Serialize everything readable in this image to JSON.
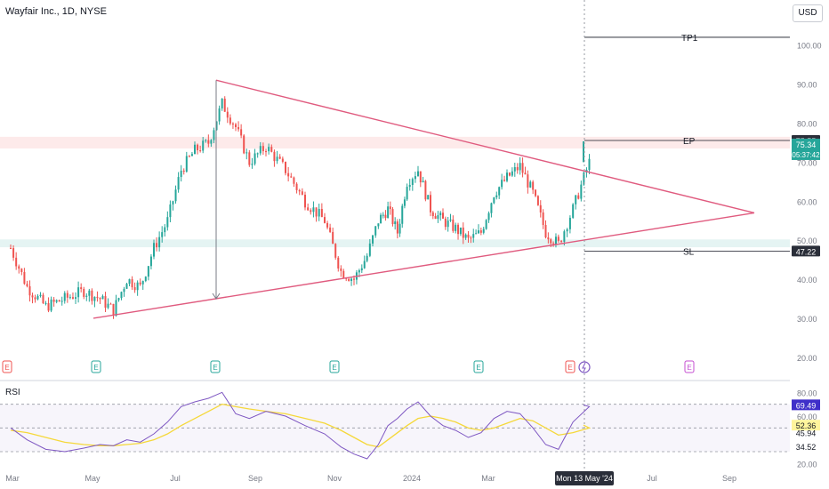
{
  "header": {
    "title": "Wayfair Inc., 1D, NYSE",
    "currency": "USD",
    "rsi_label": "RSI"
  },
  "colors": {
    "up": "#26a69a",
    "down": "#ef5350",
    "trendline": "#e05b7f",
    "rsi_line": "#7e57c2",
    "rsi_ma": "#f5d83a",
    "ep_tag": "#26a69a",
    "dark_tag": "#2a2e39",
    "rsi_tag": "#3f2fc9",
    "ma_tag": "#fff59d"
  },
  "annotations": {
    "tp1": "TP1",
    "ep": "EP",
    "sl": "SL",
    "ep_price": "75.55",
    "last_price": "75.34",
    "countdown": "05:37:42",
    "sl_price": "47.22",
    "crosshair_date": "Mon 13 May '24"
  },
  "chart_data": [
    {
      "type": "candlestick",
      "y_axis_ticks": [
        "100.00",
        "90.00",
        "80.00",
        "70.00",
        "60.00",
        "50.00",
        "40.00",
        "30.00",
        "20.00"
      ],
      "ylim": [
        17,
        107
      ],
      "x_axis_ticks": [
        "Mar",
        "May",
        "Jul",
        "Sep",
        "Nov",
        "2024",
        "Mar",
        "Jul",
        "Sep"
      ],
      "earnings_markers": [
        "E",
        "E",
        "E",
        "E",
        "E",
        "E",
        "E"
      ],
      "levels": {
        "tp1": 102,
        "ep": 75.55,
        "sl": 47.22
      },
      "zones": [
        [
          73.5,
          76.5
        ],
        [
          48.2,
          50.2
        ]
      ],
      "trendlines": [
        {
          "from": [
            "Jul 2023",
            91
          ],
          "to": [
            "Sep 2024",
            57
          ]
        },
        {
          "from": [
            "May 2023",
            30
          ],
          "to": [
            "Sep 2024",
            57
          ]
        }
      ],
      "measure_arrow": {
        "from": 91,
        "to": 35
      },
      "close_path": [
        [
          "Feb 2023",
          48
        ],
        [
          "Mar 2023",
          38
        ],
        [
          "Mar 2023",
          33
        ],
        [
          "Apr 2023",
          35
        ],
        [
          "Apr 2023",
          37
        ],
        [
          "May 2023",
          35
        ],
        [
          "May 2023",
          32
        ],
        [
          "May 2023",
          40
        ],
        [
          "Jun 2023",
          38
        ],
        [
          "Jun 2023",
          48
        ],
        [
          "Jun 2023",
          55
        ],
        [
          "Jul 2023",
          68
        ],
        [
          "Jul 2023",
          73
        ],
        [
          "Jul 2023",
          75
        ],
        [
          "Aug 2023",
          85
        ],
        [
          "Aug 2023",
          79
        ],
        [
          "Aug 2023",
          70
        ],
        [
          "Sep 2023",
          74
        ],
        [
          "Sep 2023",
          68
        ],
        [
          "Oct 2023",
          60
        ],
        [
          "Oct 2023",
          55
        ],
        [
          "Nov 2023",
          42
        ],
        [
          "Nov 2023",
          40
        ],
        [
          "Nov 2023",
          46
        ],
        [
          "Dec 2023",
          55
        ],
        [
          "Dec 2023",
          58
        ],
        [
          "Dec 2023",
          52
        ],
        [
          "Dec 2023",
          65
        ],
        [
          "Jan 2024",
          68
        ],
        [
          "Jan 2024",
          58
        ],
        [
          "Jan 2024",
          55
        ],
        [
          "Feb 2024",
          53
        ],
        [
          "Feb 2024",
          50
        ],
        [
          "Feb 2024",
          52
        ],
        [
          "Mar 2024",
          62
        ],
        [
          "Mar 2024",
          66
        ],
        [
          "Mar 2024",
          69
        ],
        [
          "Apr 2024",
          62
        ],
        [
          "Apr 2024",
          52
        ],
        [
          "Apr 2024",
          49
        ],
        [
          "May 2024",
          58
        ],
        [
          "May 2024",
          70
        ],
        [
          "May 2024",
          75.34
        ]
      ]
    },
    {
      "type": "line",
      "name": "RSI",
      "y_axis_ticks": [
        "80.00",
        "60.00",
        "20.00"
      ],
      "ylim": [
        18,
        87
      ],
      "bands": [
        70,
        50,
        30
      ],
      "labels": {
        "rsi": "69.49",
        "ma": "52.36",
        "l1": "45.94",
        "l2": "34.52"
      },
      "rsi_values": [
        50,
        40,
        32,
        30,
        33,
        36,
        35,
        40,
        38,
        45,
        55,
        68,
        72,
        75,
        80,
        62,
        58,
        64,
        60,
        52,
        45,
        34,
        28,
        24,
        36,
        52,
        58,
        66,
        72,
        60,
        52,
        48,
        42,
        46,
        58,
        64,
        62,
        50,
        36,
        32,
        55,
        68,
        69.49
      ],
      "ma_values": [
        48,
        46,
        42,
        38,
        36,
        35,
        35,
        36,
        37,
        40,
        45,
        52,
        58,
        64,
        70,
        68,
        66,
        64,
        62,
        58,
        54,
        48,
        42,
        36,
        34,
        40,
        46,
        52,
        58,
        60,
        58,
        55,
        50,
        48,
        50,
        54,
        58,
        56,
        50,
        44,
        46,
        50,
        52.36
      ]
    }
  ]
}
